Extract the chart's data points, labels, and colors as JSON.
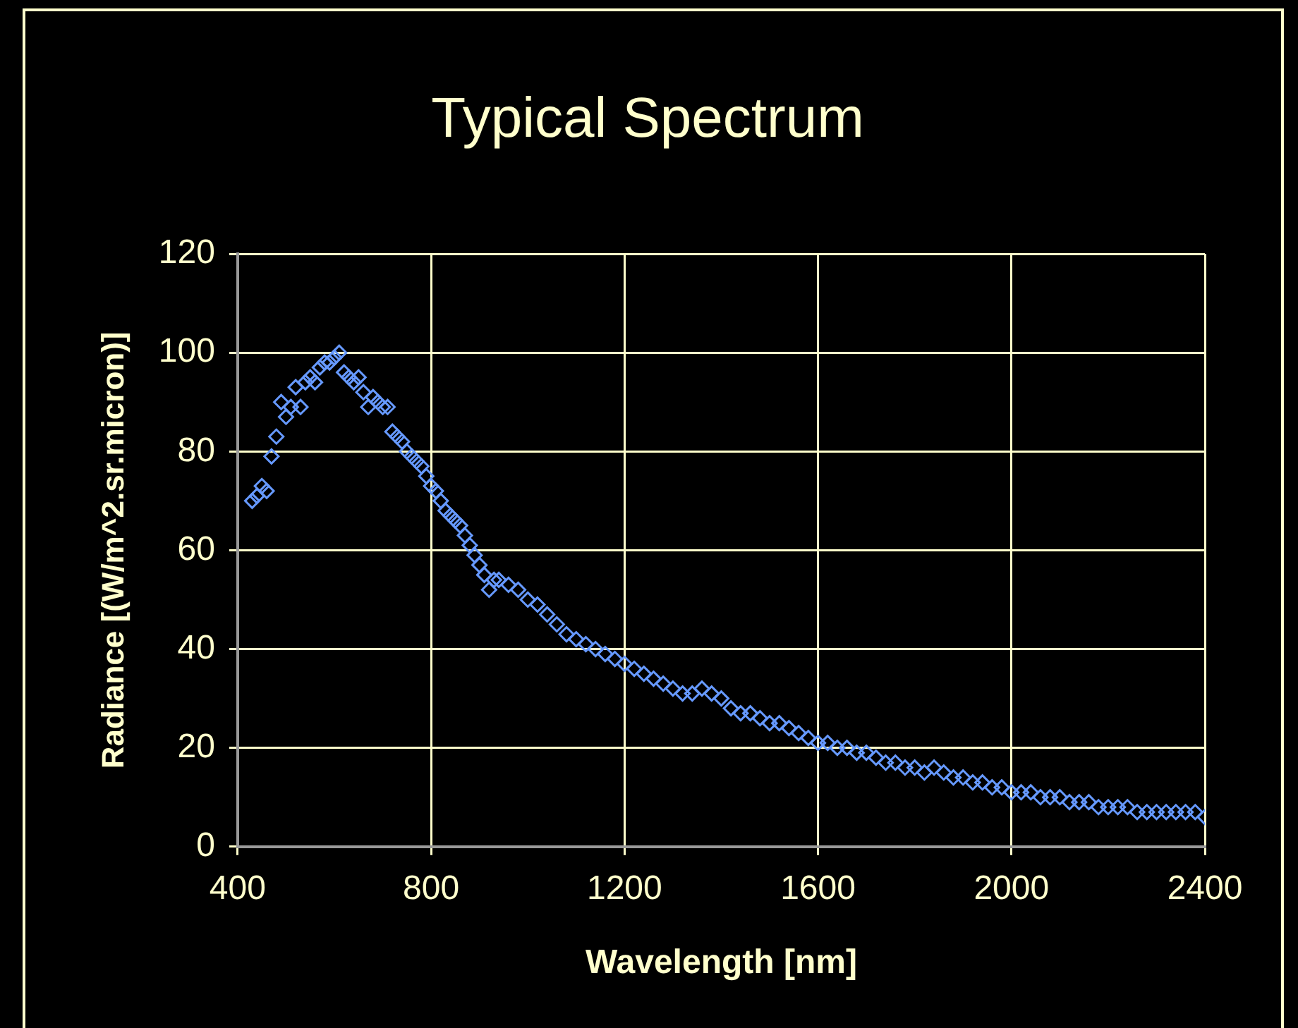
{
  "chart_data": {
    "type": "scatter",
    "title": "Typical Spectrum",
    "xlabel": "Wavelength [nm]",
    "ylabel": "Radiance [(W/m^2.sr.micron)]",
    "x": [
      430,
      440,
      450,
      460,
      470,
      480,
      490,
      500,
      510,
      520,
      530,
      540,
      550,
      560,
      570,
      580,
      590,
      600,
      610,
      620,
      630,
      640,
      650,
      660,
      670,
      680,
      690,
      700,
      710,
      720,
      730,
      740,
      750,
      760,
      770,
      780,
      790,
      800,
      810,
      820,
      830,
      840,
      850,
      860,
      870,
      880,
      890,
      900,
      910,
      920,
      930,
      940,
      960,
      980,
      1000,
      1020,
      1040,
      1060,
      1080,
      1100,
      1120,
      1140,
      1160,
      1180,
      1200,
      1220,
      1240,
      1260,
      1280,
      1300,
      1320,
      1340,
      1360,
      1380,
      1400,
      1420,
      1440,
      1460,
      1480,
      1500,
      1520,
      1540,
      1560,
      1580,
      1600,
      1620,
      1640,
      1660,
      1680,
      1700,
      1720,
      1740,
      1760,
      1780,
      1800,
      1820,
      1840,
      1860,
      1880,
      1900,
      1920,
      1940,
      1960,
      1980,
      2000,
      2020,
      2040,
      2060,
      2080,
      2100,
      2120,
      2140,
      2160,
      2180,
      2200,
      2220,
      2240,
      2260,
      2280,
      2300,
      2320,
      2340,
      2360,
      2380,
      2400
    ],
    "series": [
      {
        "color": "#6699ff",
        "values": [
          70,
          71,
          73,
          72,
          79,
          83,
          90,
          87,
          89,
          93,
          89,
          94,
          95,
          94,
          97,
          98,
          98,
          99,
          100,
          96,
          95,
          94,
          95,
          92,
          89,
          91,
          90,
          89,
          89,
          84,
          83,
          82,
          80,
          79,
          78,
          77,
          75,
          73,
          72,
          70,
          68,
          67,
          66,
          65,
          63,
          61,
          59,
          57,
          55,
          52,
          54,
          54,
          53,
          52,
          50,
          49,
          47,
          45,
          43,
          42,
          41,
          40,
          39,
          38,
          37,
          36,
          35,
          34,
          33,
          32,
          31,
          31,
          32,
          31,
          30,
          28,
          27,
          27,
          26,
          25,
          25,
          24,
          23,
          22,
          21,
          21,
          20,
          20,
          19,
          19,
          18,
          17,
          17,
          16,
          16,
          15,
          16,
          15,
          14,
          14,
          13,
          13,
          12,
          12,
          11,
          11,
          11,
          10,
          10,
          10,
          9,
          9,
          9,
          8,
          8,
          8,
          8,
          7,
          7,
          7,
          7,
          7,
          7,
          7,
          6
        ]
      }
    ],
    "xlim": [
      400,
      2400
    ],
    "xticks": [
      400,
      800,
      1200,
      1600,
      2000,
      2400
    ],
    "ylim": [
      0,
      120
    ],
    "yticks": [
      0,
      20,
      40,
      60,
      80,
      100,
      120
    ],
    "grid": true,
    "legend": false,
    "marker": "diamond"
  }
}
